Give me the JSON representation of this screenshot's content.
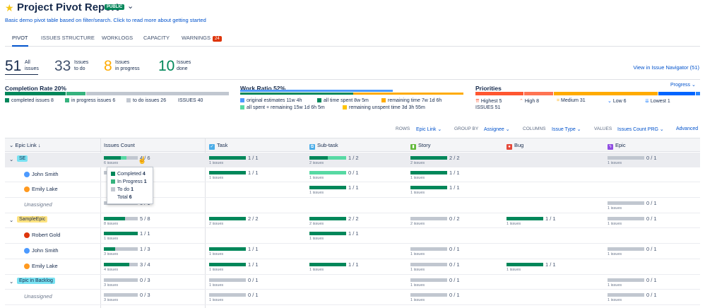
{
  "header": {
    "title": "Project Pivot Report",
    "badge": "PUBLIC",
    "subtitle": "Basic demo pivot table based on filter/search. Click to read more about getting started"
  },
  "tabs": [
    {
      "label": "PIVOT"
    },
    {
      "label": "ISSUES STRUCTURE"
    },
    {
      "label": "WORKLOGS"
    },
    {
      "label": "CAPACITY"
    },
    {
      "label": "WARNINGS",
      "badge": "24"
    }
  ],
  "stats": [
    {
      "n": "51",
      "l1": "All",
      "l2": "issues",
      "color": "#172b4d"
    },
    {
      "n": "33",
      "l1": "Issues",
      "l2": "to do",
      "color": "#42526e"
    },
    {
      "n": "8",
      "l1": "Issues",
      "l2": "in progress",
      "color": "#ffab00"
    },
    {
      "n": "10",
      "l1": "Issues",
      "l2": "done",
      "color": "#00875a"
    }
  ],
  "nav_link": "View in Issue Navigator (51)",
  "completion": {
    "title": "Completion Rate 20%",
    "completed": "completed issues 8",
    "inprogress": "in progress issues 6",
    "todo": "to do issues 26",
    "issues": "ISSUES 40"
  },
  "work": {
    "title": "Work Ratio 52%",
    "l1": "original estimates 11w 4h",
    "l2": "all time spent 8w 5m",
    "l3": "remaining time 7w 1d 6h",
    "l4": "all spent + remaining 15w 1d 6h 5m",
    "l5": "remaining unspent time 3d 3h 55m"
  },
  "priorities": {
    "title": "Priorities",
    "dropdown": "Progress",
    "items": [
      "Highest 5",
      "High 8",
      "Medium 31",
      "Low 6",
      "Lowest 1"
    ],
    "issues": "ISSUES 51"
  },
  "controls": {
    "rows_l": "ROWS",
    "rows_v": "Epic Link",
    "group_l": "GROUP BY",
    "group_v": "Assignee",
    "cols_l": "COLUMNS",
    "cols_v": "Issue Type",
    "vals_l": "VALUES",
    "vals_v": "Issues Count PRG",
    "advanced": "Advanced"
  },
  "table_headers": {
    "epic": "Epic Link",
    "count": "Issues Count",
    "task": "Task",
    "subtask": "Sub-task",
    "story": "Story",
    "bug": "Bug",
    "epiccol": "Epic"
  },
  "colors": {
    "done": "#00875a",
    "inprogress": "#57d9a3",
    "todo": "#c1c7d0"
  },
  "rows": [
    {
      "label": "SE",
      "kind": "epic",
      "tagbg": "#79e2f2",
      "count": {
        "t": "4 / 6",
        "s": "6 issues",
        "d": 0.5,
        "p": 0.17
      },
      "cells": [
        {
          "t": "1 / 1",
          "s": "1 issues",
          "d": 1,
          "p": 0
        },
        {
          "t": "1 / 2",
          "s": "2 issues",
          "d": 0.5,
          "p": 0.5
        },
        {
          "t": "2 / 2",
          "s": "2 issues",
          "d": 1,
          "p": 0
        },
        null,
        {
          "t": "0 / 1",
          "s": "1 issues",
          "d": 0,
          "p": 0
        }
      ]
    },
    {
      "label": "John Smith",
      "kind": "user",
      "av": "#4c9aff",
      "count": {
        "t": "3",
        "s": "",
        "d": 0,
        "p": 0
      },
      "cells": [
        {
          "t": "1 / 1",
          "s": "1 issues",
          "d": 1,
          "p": 0
        },
        {
          "t": "0 / 1",
          "s": "1 issues",
          "d": 0,
          "p": 1
        },
        {
          "t": "1 / 1",
          "s": "1 issues",
          "d": 1,
          "p": 0
        },
        null,
        null
      ]
    },
    {
      "label": "Emily Lake",
      "kind": "user",
      "av": "#ff991f",
      "count": null,
      "cells": [
        null,
        {
          "t": "1 / 1",
          "s": "1 issues",
          "d": 1,
          "p": 0
        },
        {
          "t": "1 / 1",
          "s": "1 issues",
          "d": 1,
          "p": 0
        },
        null,
        null
      ]
    },
    {
      "label": "Unassigned",
      "kind": "unassigned",
      "count": {
        "t": "0 / 1",
        "s": "",
        "d": 0,
        "p": 0
      },
      "cells": [
        null,
        null,
        null,
        null,
        {
          "t": "0 / 1",
          "s": "1 issues",
          "d": 0,
          "p": 0
        }
      ]
    },
    {
      "label": "SampleEpic",
      "kind": "epic",
      "tagbg": "#ffe380",
      "count": {
        "t": "5 / 8",
        "s": "8 issues",
        "d": 0.625,
        "p": 0
      },
      "cells": [
        {
          "t": "2 / 2",
          "s": "2 issues",
          "d": 1,
          "p": 0
        },
        {
          "t": "2 / 2",
          "s": "2 issues",
          "d": 1,
          "p": 0
        },
        {
          "t": "0 / 2",
          "s": "2 issues",
          "d": 0,
          "p": 0
        },
        {
          "t": "1 / 1",
          "s": "1 issues",
          "d": 1,
          "p": 0
        },
        {
          "t": "0 / 1",
          "s": "1 issues",
          "d": 0,
          "p": 0
        }
      ]
    },
    {
      "label": "Robert Gold",
      "kind": "user",
      "av": "#de350b",
      "count": {
        "t": "1 / 1",
        "s": "1 issues",
        "d": 1,
        "p": 0
      },
      "cells": [
        null,
        {
          "t": "1 / 1",
          "s": "1 issues",
          "d": 1,
          "p": 0
        },
        null,
        null,
        null
      ]
    },
    {
      "label": "John Smith",
      "kind": "user",
      "av": "#4c9aff",
      "count": {
        "t": "1 / 3",
        "s": "3 issues",
        "d": 0.33,
        "p": 0
      },
      "cells": [
        {
          "t": "1 / 1",
          "s": "1 issues",
          "d": 1,
          "p": 0
        },
        null,
        {
          "t": "0 / 1",
          "s": "1 issues",
          "d": 0,
          "p": 0
        },
        null,
        {
          "t": "0 / 1",
          "s": "1 issues",
          "d": 0,
          "p": 0
        }
      ]
    },
    {
      "label": "Emily Lake",
      "kind": "user",
      "av": "#ff991f",
      "count": {
        "t": "3 / 4",
        "s": "4 issues",
        "d": 0.75,
        "p": 0
      },
      "cells": [
        {
          "t": "1 / 1",
          "s": "1 issues",
          "d": 1,
          "p": 0
        },
        {
          "t": "1 / 1",
          "s": "1 issues",
          "d": 1,
          "p": 0
        },
        {
          "t": "0 / 1",
          "s": "1 issues",
          "d": 0,
          "p": 0
        },
        {
          "t": "1 / 1",
          "s": "1 issues",
          "d": 1,
          "p": 0
        },
        null
      ]
    },
    {
      "label": "Epic in Backlog",
      "kind": "epic",
      "tagbg": "#79e2f2",
      "count": {
        "t": "0 / 3",
        "s": "3 issues",
        "d": 0,
        "p": 0
      },
      "cells": [
        {
          "t": "0 / 1",
          "s": "1 issues",
          "d": 0,
          "p": 0
        },
        null,
        {
          "t": "0 / 1",
          "s": "1 issues",
          "d": 0,
          "p": 0
        },
        null,
        {
          "t": "0 / 1",
          "s": "1 issues",
          "d": 0,
          "p": 0
        }
      ]
    },
    {
      "label": "Unassigned",
      "kind": "unassigned",
      "count": {
        "t": "0 / 3",
        "s": "3 issues",
        "d": 0,
        "p": 0
      },
      "cells": [
        {
          "t": "0 / 1",
          "s": "1 issues",
          "d": 0,
          "p": 0
        },
        null,
        {
          "t": "0 / 1",
          "s": "1 issues",
          "d": 0,
          "p": 0
        },
        null,
        {
          "t": "0 / 1",
          "s": "1 issues",
          "d": 0,
          "p": 0
        }
      ]
    }
  ],
  "tooltip": {
    "completed": "Completed",
    "completed_n": "4",
    "inprogress": "In Progress",
    "inprogress_n": "1",
    "todo": "To do",
    "todo_n": "1",
    "total": "Total",
    "total_n": "6"
  }
}
